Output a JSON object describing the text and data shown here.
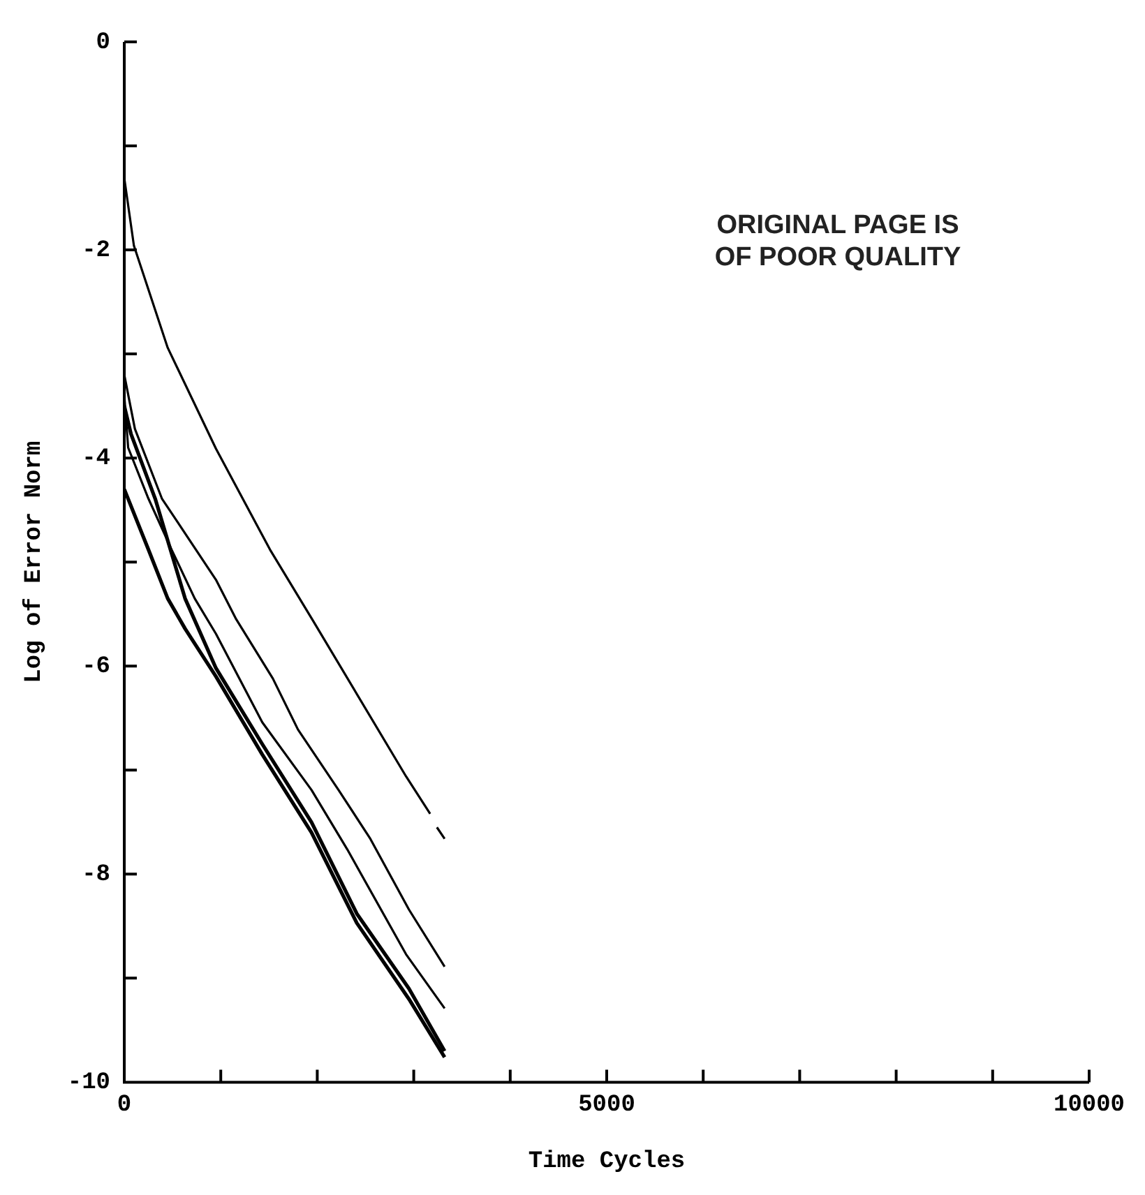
{
  "chart_data": {
    "type": "line",
    "xlabel": "Time Cycles",
    "ylabel": "Log of Error Norm",
    "annotations": [
      "ORIGINAL PAGE IS\nOF POOR QUALITY"
    ],
    "xlim": [
      0,
      10000
    ],
    "ylim": [
      -10,
      0
    ],
    "xticks": [
      0,
      {
        "value": 1000,
        "label": null
      },
      {
        "value": 2000,
        "label": null
      },
      {
        "value": 3000,
        "label": null
      },
      {
        "value": 4000,
        "label": null
      },
      5000,
      {
        "value": 6000,
        "label": null
      },
      {
        "value": 7000,
        "label": null
      },
      {
        "value": 8000,
        "label": null
      },
      {
        "value": 9000,
        "label": null
      },
      10000
    ],
    "yticks": [
      -10,
      {
        "value": -9,
        "label": null
      },
      -8,
      {
        "value": -7,
        "label": null
      },
      -6,
      {
        "value": -5,
        "label": null
      },
      -4,
      {
        "value": -3,
        "label": null
      },
      -2,
      {
        "value": -1,
        "label": null
      },
      0
    ],
    "grid": false,
    "series": [
      {
        "color": "#000000",
        "x": [
          0,
          100,
          450,
          950,
          1510,
          1960,
          2920,
          3170,
          3200,
          3240,
          3320
        ],
        "values": [
          -1.31,
          -1.96,
          -2.94,
          -3.91,
          -4.88,
          -5.57,
          -7.06,
          -7.42,
          null,
          -7.55,
          -7.66
        ]
      },
      {
        "color": "#000000",
        "x": [
          0,
          110,
          390,
          950,
          1160,
          1540,
          1800,
          2220,
          2550,
          2950,
          3320
        ],
        "values": [
          -3.2,
          -3.72,
          -4.39,
          -5.17,
          -5.55,
          -6.12,
          -6.61,
          -7.19,
          -7.66,
          -8.34,
          -8.89
        ]
      },
      {
        "color": "#000000",
        "x": [
          0,
          40,
          250,
          490,
          730,
          950,
          1430,
          1940,
          2310,
          2920,
          3320
        ],
        "values": [
          -3.4,
          -3.9,
          -4.39,
          -4.88,
          -5.35,
          -5.69,
          -6.54,
          -7.19,
          -7.76,
          -8.77,
          -9.29
        ]
      },
      {
        "color": "#000000",
        "x": [
          0,
          70,
          320,
          630,
          950,
          1430,
          1940,
          2410,
          2950,
          3320
        ],
        "values": [
          -3.5,
          -3.77,
          -4.39,
          -5.35,
          -6.02,
          -6.75,
          -7.5,
          -8.38,
          -9.1,
          -9.7
        ]
      },
      {
        "color": "#000000",
        "x": [
          0,
          250,
          450,
          630,
          950,
          1430,
          1940,
          2410,
          2950,
          3320
        ],
        "values": [
          -4.3,
          -4.88,
          -5.35,
          -5.64,
          -6.1,
          -6.85,
          -7.6,
          -8.47,
          -9.2,
          -9.76
        ]
      }
    ]
  }
}
